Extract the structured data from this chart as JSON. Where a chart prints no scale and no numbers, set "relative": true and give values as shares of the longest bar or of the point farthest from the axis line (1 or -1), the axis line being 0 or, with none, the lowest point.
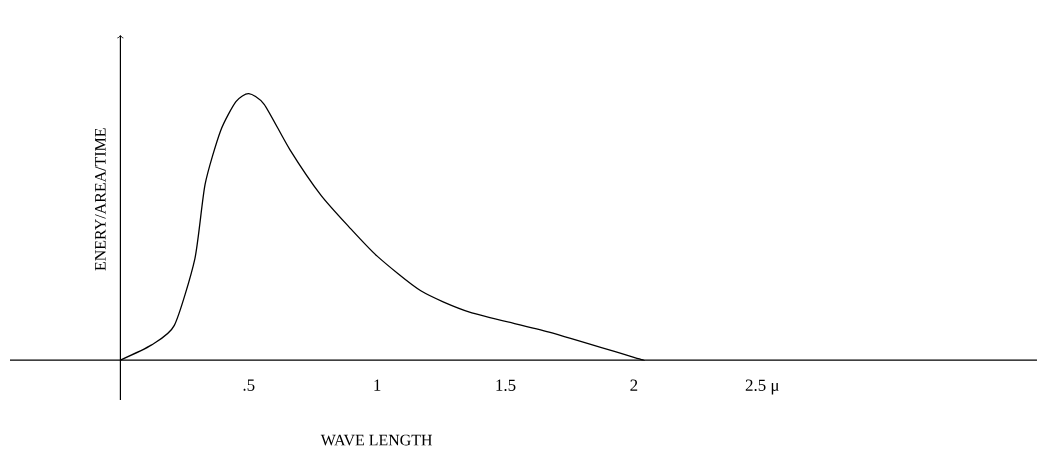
{
  "chart_data": {
    "type": "line",
    "relative": true,
    "xlabel": "WAVE LENGTH",
    "ylabel": "ENERY/AREA/TIME",
    "xlim": [
      -0.43,
      3.57
    ],
    "xticks": [
      {
        "value": 0.5,
        "label": ".5"
      },
      1,
      1.5,
      2,
      {
        "value": 2.5,
        "label": "2.5 μ"
      }
    ],
    "series": [
      {
        "color": "#000000",
        "x": [
          0,
          0.12,
          0.21,
          0.29,
          0.33,
          0.39,
          0.45,
          0.5,
          0.56,
          0.66,
          0.78,
          0.89,
          1.0,
          1.17,
          1.36,
          1.67,
          2.0,
          2.04
        ],
        "values": [
          0,
          0.056,
          0.13,
          0.38,
          0.66,
          0.86,
          0.97,
          1,
          0.96,
          0.79,
          0.62,
          0.5,
          0.39,
          0.26,
          0.18,
          0.105,
          0.01,
          0
        ]
      }
    ]
  }
}
